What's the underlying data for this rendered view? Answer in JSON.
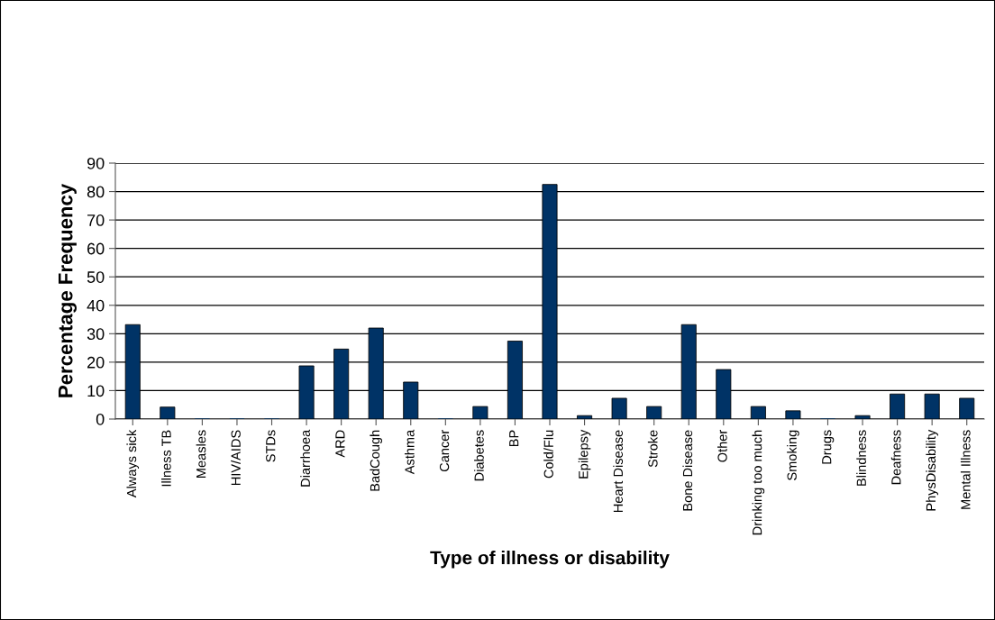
{
  "chart_data": {
    "type": "bar",
    "xlabel": "Type of illness or disability",
    "ylabel": "Percentage Frequency",
    "categories": [
      "Always sick",
      "Illness TB",
      "Measles",
      "HIV/AIDS",
      "STDs",
      "Diarrhoea",
      "ARD",
      "BadCough",
      "Asthma",
      "Cancer",
      "Diabetes",
      "BP",
      "Cold/Flu",
      "Epilepsy",
      "Heart Disease",
      "Stroke",
      "Bone Disease",
      "Other",
      "Drinking too much",
      "Smoking",
      "Drugs",
      "Blindness",
      "Deafness",
      "PhysDisability",
      "Mental Illness"
    ],
    "values": [
      33.2,
      4.2,
      0,
      0,
      0,
      18.7,
      24.6,
      32.0,
      13.0,
      0,
      4.4,
      27.4,
      82.5,
      1.2,
      7.3,
      4.4,
      33.2,
      17.4,
      4.4,
      2.9,
      0,
      1.2,
      8.8,
      8.8,
      7.3
    ],
    "color": "#003366",
    "ylim": [
      0,
      90
    ],
    "yticks": [
      0,
      10,
      20,
      30,
      40,
      50,
      60,
      70,
      80,
      90
    ],
    "grid": "y",
    "legend": false
  }
}
